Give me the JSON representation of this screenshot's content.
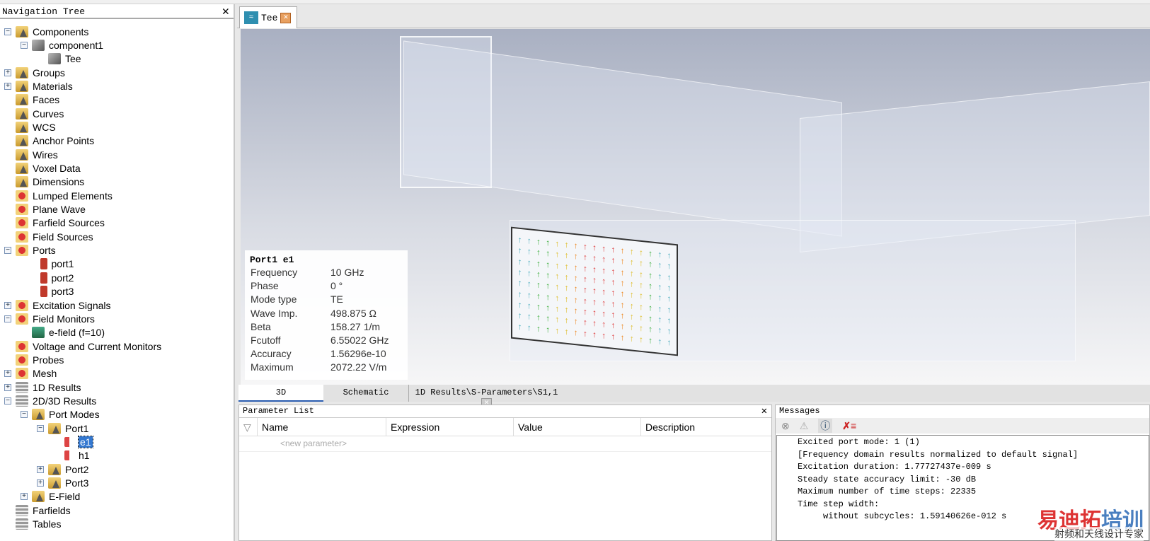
{
  "nav": {
    "title": "Navigation Tree",
    "items": [
      {
        "label": "Components",
        "level": 0,
        "exp": "-",
        "icon": "folder"
      },
      {
        "label": "component1",
        "level": 1,
        "exp": "-",
        "icon": "box"
      },
      {
        "label": "Tee",
        "level": 2,
        "exp": "",
        "icon": "box"
      },
      {
        "label": "Groups",
        "level": 0,
        "exp": "+",
        "icon": "folder"
      },
      {
        "label": "Materials",
        "level": 0,
        "exp": "+",
        "icon": "folder"
      },
      {
        "label": "Faces",
        "level": 0,
        "exp": "",
        "icon": "folder"
      },
      {
        "label": "Curves",
        "level": 0,
        "exp": "",
        "icon": "folder"
      },
      {
        "label": "WCS",
        "level": 0,
        "exp": "",
        "icon": "folder"
      },
      {
        "label": "Anchor Points",
        "level": 0,
        "exp": "",
        "icon": "folder"
      },
      {
        "label": "Wires",
        "level": 0,
        "exp": "",
        "icon": "folder"
      },
      {
        "label": "Voxel Data",
        "level": 0,
        "exp": "",
        "icon": "folder"
      },
      {
        "label": "Dimensions",
        "level": 0,
        "exp": "",
        "icon": "folder"
      },
      {
        "label": "Lumped Elements",
        "level": 0,
        "exp": "",
        "icon": "gear"
      },
      {
        "label": "Plane Wave",
        "level": 0,
        "exp": "",
        "icon": "gear"
      },
      {
        "label": "Farfield Sources",
        "level": 0,
        "exp": "",
        "icon": "gear"
      },
      {
        "label": "Field Sources",
        "level": 0,
        "exp": "",
        "icon": "gear"
      },
      {
        "label": "Ports",
        "level": 0,
        "exp": "-",
        "icon": "gear"
      },
      {
        "label": "port1",
        "level": 1.5,
        "exp": "",
        "icon": "port"
      },
      {
        "label": "port2",
        "level": 1.5,
        "exp": "",
        "icon": "port"
      },
      {
        "label": "port3",
        "level": 1.5,
        "exp": "",
        "icon": "port"
      },
      {
        "label": "Excitation Signals",
        "level": 0,
        "exp": "+",
        "icon": "gear"
      },
      {
        "label": "Field Monitors",
        "level": 0,
        "exp": "-",
        "icon": "gear"
      },
      {
        "label": "e-field (f=10)",
        "level": 1,
        "exp": "",
        "icon": "mon"
      },
      {
        "label": "Voltage and Current Monitors",
        "level": 0,
        "exp": "",
        "icon": "gear"
      },
      {
        "label": "Probes",
        "level": 0,
        "exp": "",
        "icon": "gear"
      },
      {
        "label": "Mesh",
        "level": 0,
        "exp": "+",
        "icon": "gear"
      },
      {
        "label": "1D Results",
        "level": 0,
        "exp": "+",
        "icon": "stack"
      },
      {
        "label": "2D/3D Results",
        "level": 0,
        "exp": "-",
        "icon": "stack"
      },
      {
        "label": "Port Modes",
        "level": 1,
        "exp": "-",
        "icon": "folder"
      },
      {
        "label": "Port1",
        "level": 2,
        "exp": "-",
        "icon": "folder"
      },
      {
        "label": "e1",
        "level": 3,
        "exp": "",
        "icon": "arrows",
        "selected": true
      },
      {
        "label": "h1",
        "level": 3,
        "exp": "",
        "icon": "arrows"
      },
      {
        "label": "Port2",
        "level": 2,
        "exp": "+",
        "icon": "folder"
      },
      {
        "label": "Port3",
        "level": 2,
        "exp": "+",
        "icon": "folder"
      },
      {
        "label": "E-Field",
        "level": 1,
        "exp": "+",
        "icon": "folder"
      },
      {
        "label": "Farfields",
        "level": 0,
        "exp": "",
        "icon": "stack"
      },
      {
        "label": "Tables",
        "level": 0,
        "exp": "",
        "icon": "stack"
      }
    ]
  },
  "doc_tab": {
    "label": "Tee"
  },
  "info": {
    "title": "Port1 e1",
    "rows": [
      {
        "k": "Frequency",
        "v": "10 GHz"
      },
      {
        "k": "Phase",
        "v": "0 °"
      },
      {
        "k": "Mode type",
        "v": "TE"
      },
      {
        "k": "Wave Imp.",
        "v": "498.875 Ω"
      },
      {
        "k": "Beta",
        "v": "158.27 1/m"
      },
      {
        "k": "Fcutoff",
        "v": "6.55022 GHz"
      },
      {
        "k": "Accuracy",
        "v": "1.56296e-10"
      },
      {
        "k": "Maximum",
        "v": "2072.22 V/m"
      }
    ]
  },
  "bottom_tabs": [
    "3D",
    "Schematic",
    "1D Results\\S-Parameters\\S1,1"
  ],
  "params": {
    "title": "Parameter List",
    "columns": [
      "Name",
      "Expression",
      "Value",
      "Description"
    ],
    "new_placeholder": "<new parameter>"
  },
  "messages": {
    "title": "Messages",
    "lines": [
      "Excited port mode: 1 (1)",
      "[Frequency domain results normalized to default signal]",
      "Excitation duration: 1.77727437e-009 s",
      "Steady state accuracy limit: -30 dB",
      "Maximum number of time steps: 22335",
      "Time step width:",
      "     without subcycles: 1.59140626e-012 s"
    ]
  },
  "watermark": {
    "brand": "易迪拓培训",
    "sub": "射频和天线设计专家"
  }
}
